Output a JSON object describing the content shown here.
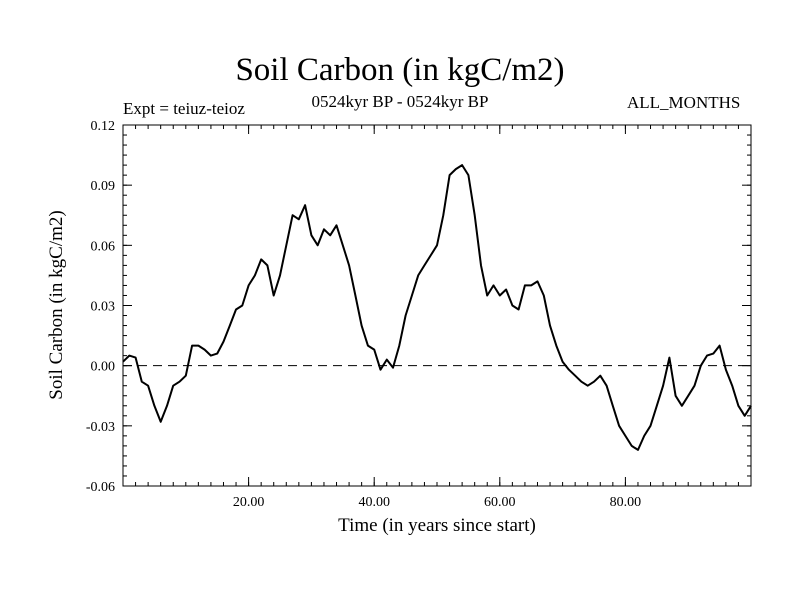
{
  "header": {
    "title": "Soil Carbon (in kgC/m2)",
    "subtitle": "0524kyr BP - 0524kyr BP",
    "experiment": "Expt = teiuz-teioz",
    "period": "ALL_MONTHS"
  },
  "colors": {
    "line": "#000000",
    "zero_line": "#000000",
    "background": "#ffffff"
  },
  "chart_data": {
    "type": "line",
    "title": "Soil Carbon (in kgC/m2)",
    "xlabel": "Time (in years since start)",
    "ylabel": "Soil Carbon (in kgC/m2)",
    "xlim": [
      0,
      100
    ],
    "ylim": [
      -0.06,
      0.12
    ],
    "x_ticks": [
      20,
      40,
      60,
      80
    ],
    "x_tick_labels": [
      "20.00",
      "40.00",
      "60.00",
      "80.00"
    ],
    "y_ticks": [
      -0.06,
      -0.03,
      0.0,
      0.03,
      0.06,
      0.09,
      0.12
    ],
    "y_tick_labels": [
      "-0.06",
      "-0.03",
      "0.00",
      "0.03",
      "0.06",
      "0.09",
      "0.12"
    ],
    "reference_line": {
      "y": 0.0,
      "style": "dashed"
    },
    "series": [
      {
        "name": "Soil Carbon",
        "x": [
          0,
          1,
          2,
          3,
          4,
          5,
          6,
          7,
          8,
          9,
          10,
          11,
          12,
          13,
          14,
          15,
          16,
          17,
          18,
          19,
          20,
          21,
          22,
          23,
          24,
          25,
          26,
          27,
          28,
          29,
          30,
          31,
          32,
          33,
          34,
          35,
          36,
          37,
          38,
          39,
          40,
          41,
          42,
          43,
          44,
          45,
          46,
          47,
          48,
          49,
          50,
          51,
          52,
          53,
          54,
          55,
          56,
          57,
          58,
          59,
          60,
          61,
          62,
          63,
          64,
          65,
          66,
          67,
          68,
          69,
          70,
          71,
          72,
          73,
          74,
          75,
          76,
          77,
          78,
          79,
          80,
          81,
          82,
          83,
          84,
          85,
          86,
          87,
          88,
          89,
          90,
          91,
          92,
          93,
          94,
          95,
          96,
          97,
          98,
          99,
          100
        ],
        "values": [
          0.002,
          0.005,
          0.004,
          -0.008,
          -0.01,
          -0.02,
          -0.028,
          -0.02,
          -0.01,
          -0.008,
          -0.005,
          0.01,
          0.01,
          0.008,
          0.005,
          0.006,
          0.012,
          0.02,
          0.028,
          0.03,
          0.04,
          0.045,
          0.053,
          0.05,
          0.035,
          0.045,
          0.06,
          0.075,
          0.073,
          0.08,
          0.065,
          0.06,
          0.068,
          0.065,
          0.07,
          0.06,
          0.05,
          0.035,
          0.02,
          0.01,
          0.008,
          -0.002,
          0.003,
          -0.001,
          0.01,
          0.025,
          0.035,
          0.045,
          0.05,
          0.055,
          0.06,
          0.075,
          0.095,
          0.098,
          0.1,
          0.095,
          0.075,
          0.05,
          0.035,
          0.04,
          0.035,
          0.038,
          0.03,
          0.028,
          0.04,
          0.04,
          0.042,
          0.035,
          0.02,
          0.01,
          0.002,
          -0.002,
          -0.005,
          -0.008,
          -0.01,
          -0.008,
          -0.005,
          -0.01,
          -0.02,
          -0.03,
          -0.035,
          -0.04,
          -0.042,
          -0.035,
          -0.03,
          -0.02,
          -0.01,
          0.004,
          -0.015,
          -0.02,
          -0.015,
          -0.01,
          0.0,
          0.005,
          0.006,
          0.01,
          -0.002,
          -0.01,
          -0.02,
          -0.025,
          -0.02
        ]
      }
    ]
  }
}
